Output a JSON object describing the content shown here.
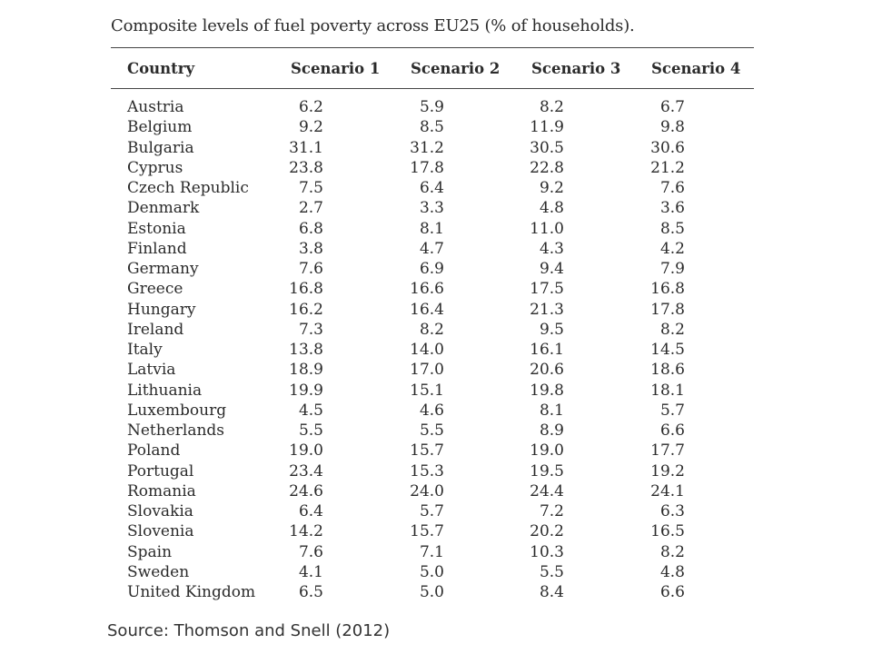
{
  "title": "Composite levels of fuel poverty across EU25 (% of households).",
  "columns": [
    "Country",
    "Scenario 1",
    "Scenario 2",
    "Scenario 3",
    "Scenario 4"
  ],
  "rows": [
    {
      "country": "Austria",
      "values": [
        "6.2",
        "5.9",
        "8.2",
        "6.7"
      ]
    },
    {
      "country": "Belgium",
      "values": [
        "9.2",
        "8.5",
        "11.9",
        "9.8"
      ]
    },
    {
      "country": "Bulgaria",
      "values": [
        "31.1",
        "31.2",
        "30.5",
        "30.6"
      ]
    },
    {
      "country": "Cyprus",
      "values": [
        "23.8",
        "17.8",
        "22.8",
        "21.2"
      ]
    },
    {
      "country": "Czech Republic",
      "values": [
        "7.5",
        "6.4",
        "9.2",
        "7.6"
      ]
    },
    {
      "country": "Denmark",
      "values": [
        "2.7",
        "3.3",
        "4.8",
        "3.6"
      ]
    },
    {
      "country": "Estonia",
      "values": [
        "6.8",
        "8.1",
        "11.0",
        "8.5"
      ]
    },
    {
      "country": "Finland",
      "values": [
        "3.8",
        "4.7",
        "4.3",
        "4.2"
      ]
    },
    {
      "country": "Germany",
      "values": [
        "7.6",
        "6.9",
        "9.4",
        "7.9"
      ]
    },
    {
      "country": "Greece",
      "values": [
        "16.8",
        "16.6",
        "17.5",
        "16.8"
      ]
    },
    {
      "country": "Hungary",
      "values": [
        "16.2",
        "16.4",
        "21.3",
        "17.8"
      ]
    },
    {
      "country": "Ireland",
      "values": [
        "7.3",
        "8.2",
        "9.5",
        "8.2"
      ]
    },
    {
      "country": "Italy",
      "values": [
        "13.8",
        "14.0",
        "16.1",
        "14.5"
      ]
    },
    {
      "country": "Latvia",
      "values": [
        "18.9",
        "17.0",
        "20.6",
        "18.6"
      ]
    },
    {
      "country": "Lithuania",
      "values": [
        "19.9",
        "15.1",
        "19.8",
        "18.1"
      ]
    },
    {
      "country": "Luxembourg",
      "values": [
        "4.5",
        "4.6",
        "8.1",
        "5.7"
      ]
    },
    {
      "country": "Netherlands",
      "values": [
        "5.5",
        "5.5",
        "8.9",
        "6.6"
      ]
    },
    {
      "country": "Poland",
      "values": [
        "19.0",
        "15.7",
        "19.0",
        "17.7"
      ]
    },
    {
      "country": "Portugal",
      "values": [
        "23.4",
        "15.3",
        "19.5",
        "19.2"
      ]
    },
    {
      "country": "Romania",
      "values": [
        "24.6",
        "24.0",
        "24.4",
        "24.1"
      ]
    },
    {
      "country": "Slovakia",
      "values": [
        "6.4",
        "5.7",
        "7.2",
        "6.3"
      ]
    },
    {
      "country": "Slovenia",
      "values": [
        "14.2",
        "15.7",
        "20.2",
        "16.5"
      ]
    },
    {
      "country": "Spain",
      "values": [
        "7.6",
        "7.1",
        "10.3",
        "8.2"
      ]
    },
    {
      "country": "Sweden",
      "values": [
        "4.1",
        "5.0",
        "5.5",
        "4.8"
      ]
    },
    {
      "country": "United Kingdom",
      "values": [
        "6.5",
        "5.0",
        "8.4",
        "6.6"
      ]
    }
  ],
  "source": "Source: Thomson and Snell (2012)"
}
